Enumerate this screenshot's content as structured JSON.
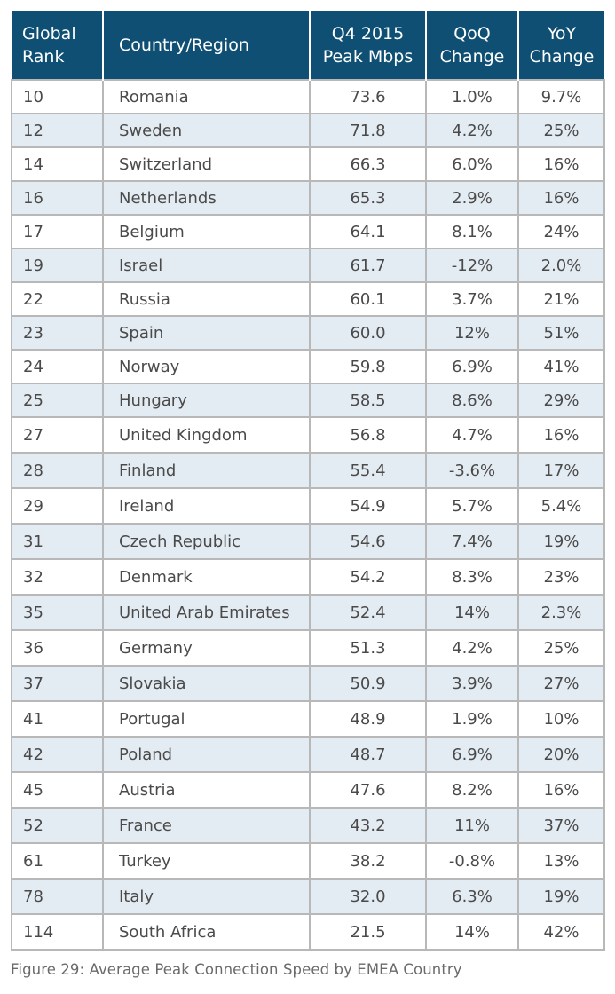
{
  "chart_data": {
    "type": "table",
    "title": "",
    "columns": [
      {
        "key": "rank",
        "label": "Global Rank",
        "lines": [
          "Global",
          "Rank"
        ]
      },
      {
        "key": "country",
        "label": "Country/Region",
        "lines": [
          "Country/Region"
        ]
      },
      {
        "key": "peak",
        "label": "Q4 2015 Peak Mbps",
        "lines": [
          "Q4 2015",
          "Peak Mbps"
        ]
      },
      {
        "key": "qoq",
        "label": "QoQ Change",
        "lines": [
          "QoQ",
          "Change"
        ]
      },
      {
        "key": "yoy",
        "label": "YoY Change",
        "lines": [
          "YoY",
          "Change"
        ]
      }
    ],
    "rows": [
      {
        "rank": "10",
        "country": "Romania",
        "peak": "73.6",
        "qoq": "1.0%",
        "yoy": "9.7%"
      },
      {
        "rank": "12",
        "country": "Sweden",
        "peak": "71.8",
        "qoq": "4.2%",
        "yoy": "25%"
      },
      {
        "rank": "14",
        "country": "Switzerland",
        "peak": "66.3",
        "qoq": "6.0%",
        "yoy": "16%"
      },
      {
        "rank": "16",
        "country": "Netherlands",
        "peak": "65.3",
        "qoq": "2.9%",
        "yoy": "16%"
      },
      {
        "rank": "17",
        "country": "Belgium",
        "peak": "64.1",
        "qoq": "8.1%",
        "yoy": "24%"
      },
      {
        "rank": "19",
        "country": "Israel",
        "peak": "61.7",
        "qoq": "-12%",
        "yoy": "2.0%"
      },
      {
        "rank": "22",
        "country": "Russia",
        "peak": "60.1",
        "qoq": "3.7%",
        "yoy": "21%"
      },
      {
        "rank": "23",
        "country": "Spain",
        "peak": "60.0",
        "qoq": "12%",
        "yoy": "51%"
      },
      {
        "rank": "24",
        "country": "Norway",
        "peak": "59.8",
        "qoq": "6.9%",
        "yoy": "41%"
      },
      {
        "rank": "25",
        "country": "Hungary",
        "peak": "58.5",
        "qoq": "8.6%",
        "yoy": "29%"
      },
      {
        "rank": "27",
        "country": "United Kingdom",
        "peak": "56.8",
        "qoq": "4.7%",
        "yoy": "16%"
      },
      {
        "rank": "28",
        "country": "Finland",
        "peak": "55.4",
        "qoq": "-3.6%",
        "yoy": "17%"
      },
      {
        "rank": "29",
        "country": "Ireland",
        "peak": "54.9",
        "qoq": "5.7%",
        "yoy": "5.4%"
      },
      {
        "rank": "31",
        "country": "Czech Republic",
        "peak": "54.6",
        "qoq": "7.4%",
        "yoy": "19%"
      },
      {
        "rank": "32",
        "country": "Denmark",
        "peak": "54.2",
        "qoq": "8.3%",
        "yoy": "23%"
      },
      {
        "rank": "35",
        "country": "United Arab Emirates",
        "peak": "52.4",
        "qoq": "14%",
        "yoy": "2.3%"
      },
      {
        "rank": "36",
        "country": "Germany",
        "peak": "51.3",
        "qoq": "4.2%",
        "yoy": "25%"
      },
      {
        "rank": "37",
        "country": "Slovakia",
        "peak": "50.9",
        "qoq": "3.9%",
        "yoy": "27%"
      },
      {
        "rank": "41",
        "country": "Portugal",
        "peak": "48.9",
        "qoq": "1.9%",
        "yoy": "10%"
      },
      {
        "rank": "42",
        "country": "Poland",
        "peak": "48.7",
        "qoq": "6.9%",
        "yoy": "20%"
      },
      {
        "rank": "45",
        "country": "Austria",
        "peak": "47.6",
        "qoq": "8.2%",
        "yoy": "16%"
      },
      {
        "rank": "52",
        "country": "France",
        "peak": "43.2",
        "qoq": "11%",
        "yoy": "37%"
      },
      {
        "rank": "61",
        "country": "Turkey",
        "peak": "38.2",
        "qoq": "-0.8%",
        "yoy": "13%"
      },
      {
        "rank": "78",
        "country": "Italy",
        "peak": "32.0",
        "qoq": "6.3%",
        "yoy": "19%"
      },
      {
        "rank": "114",
        "country": "South Africa",
        "peak": "21.5",
        "qoq": "14%",
        "yoy": "42%"
      }
    ]
  },
  "caption": "Figure 29: Average Peak Connection Speed by EMEA Country",
  "colors": {
    "header_bg": "#0e4f73",
    "header_text": "#ffffff",
    "stripe": "#e4ecf3",
    "grid": "#b8b8b8",
    "cell_text": "#4a4a4a"
  }
}
